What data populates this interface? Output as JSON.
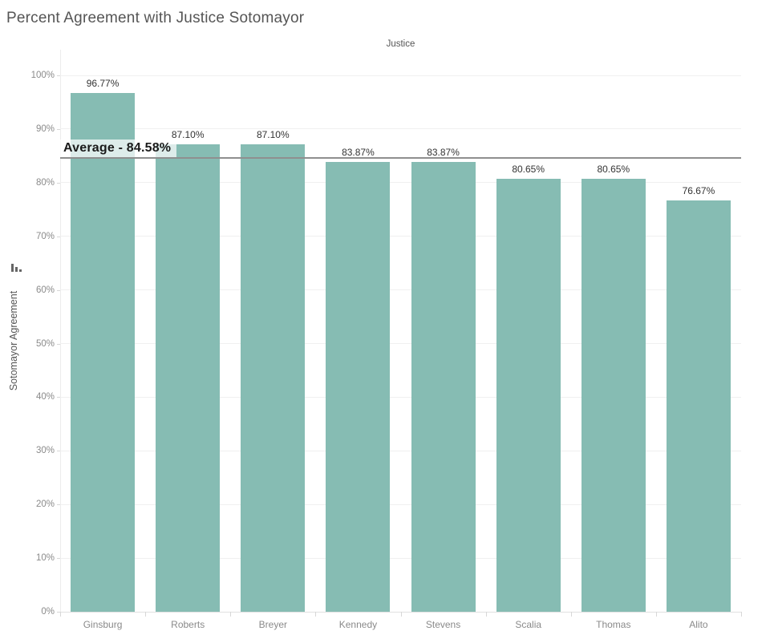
{
  "chart_data": {
    "type": "bar",
    "title": "Percent Agreement with Justice Sotomayor",
    "column_header": "Justice",
    "ylabel": "Sotomayor Agreement",
    "categories": [
      "Ginsburg",
      "Roberts",
      "Breyer",
      "Kennedy",
      "Stevens",
      "Scalia",
      "Thomas",
      "Alito"
    ],
    "values": [
      96.77,
      87.1,
      87.1,
      83.87,
      83.87,
      80.65,
      80.65,
      76.67
    ],
    "value_labels": [
      "96.77%",
      "87.10%",
      "87.10%",
      "83.87%",
      "83.87%",
      "80.65%",
      "80.65%",
      "76.67%"
    ],
    "average": {
      "value": 84.58,
      "label": "Average - 84.58%"
    },
    "ylim": [
      0,
      100
    ],
    "yticks": [
      {
        "value": 0,
        "label": "0%"
      },
      {
        "value": 10,
        "label": "10%"
      },
      {
        "value": 20,
        "label": "20%"
      },
      {
        "value": 30,
        "label": "30%"
      },
      {
        "value": 40,
        "label": "40%"
      },
      {
        "value": 50,
        "label": "50%"
      },
      {
        "value": 60,
        "label": "60%"
      },
      {
        "value": 70,
        "label": "70%"
      },
      {
        "value": 80,
        "label": "80%"
      },
      {
        "value": 90,
        "label": "90%"
      },
      {
        "value": 100,
        "label": "100%"
      }
    ],
    "grid": true,
    "legend": "none",
    "colors": {
      "bar": "#86bcb3",
      "average_line": "#8f8f8f",
      "gridline": "#f0f0f0",
      "zero_line": "#e1e1e1",
      "tick_label": "#8a8a8a",
      "value_label": "#333333",
      "title": "#555555"
    }
  }
}
